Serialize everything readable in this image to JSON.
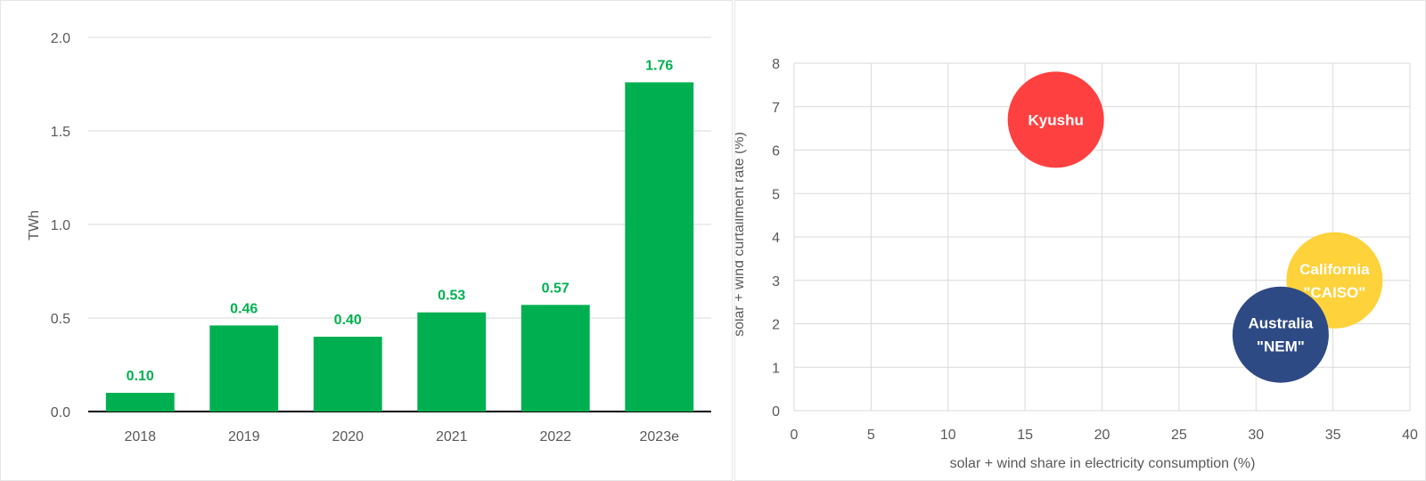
{
  "chart_data": [
    {
      "type": "bar",
      "title": "",
      "ylabel": "TWh",
      "xlabel": "",
      "categories": [
        "2018",
        "2019",
        "2020",
        "2021",
        "2022",
        "2023e"
      ],
      "values": [
        0.1,
        0.46,
        0.4,
        0.53,
        0.57,
        1.76
      ],
      "data_labels": [
        "0.10",
        "0.46",
        "0.40",
        "0.53",
        "0.57",
        "1.76"
      ],
      "yticks": [
        "0.0",
        "0.5",
        "1.0",
        "1.5",
        "2.0"
      ],
      "ylim": [
        0,
        2.0
      ],
      "grid": true,
      "colors": {
        "bar": "#00b050",
        "label": "#00b050"
      }
    },
    {
      "type": "scatter",
      "title": "",
      "xlabel": "solar + wind share in electricity consumption (%)",
      "ylabel": "solar + wind curtailment rate (%)",
      "xlim": [
        0,
        40
      ],
      "ylim": [
        0,
        8
      ],
      "xticks": [
        "0",
        "5",
        "10",
        "15",
        "20",
        "25",
        "30",
        "35",
        "40"
      ],
      "yticks": [
        "0",
        "1",
        "2",
        "3",
        "4",
        "5",
        "6",
        "7",
        "8"
      ],
      "grid": true,
      "points": [
        {
          "label_lines": [
            "Kyushu"
          ],
          "x": 17.0,
          "y": 6.7,
          "color": "#ff4040"
        },
        {
          "label_lines": [
            "California",
            "\"CAISO\""
          ],
          "x": 35.1,
          "y": 3.0,
          "color": "#fdd23a"
        },
        {
          "label_lines": [
            "Australia",
            "\"NEM\""
          ],
          "x": 31.6,
          "y": 1.75,
          "color": "#2e4a85"
        }
      ]
    }
  ]
}
